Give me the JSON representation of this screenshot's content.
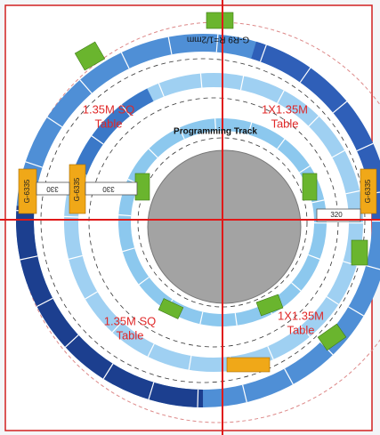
{
  "areas": [
    {
      "line1": "1.35M SQ",
      "line2": "Table"
    },
    {
      "line1": "1X1.35M",
      "line2": "Table"
    },
    {
      "line1": "1.35M SQ",
      "line2": "Table"
    },
    {
      "line1": "1X1.35M",
      "line2": "Table"
    }
  ],
  "programming_track": "Programming Track",
  "top_label": "G-R9 R=1/2mm",
  "pieces": [
    "G-6335",
    "G-6335",
    "G-6335",
    "330",
    "330",
    "320"
  ]
}
